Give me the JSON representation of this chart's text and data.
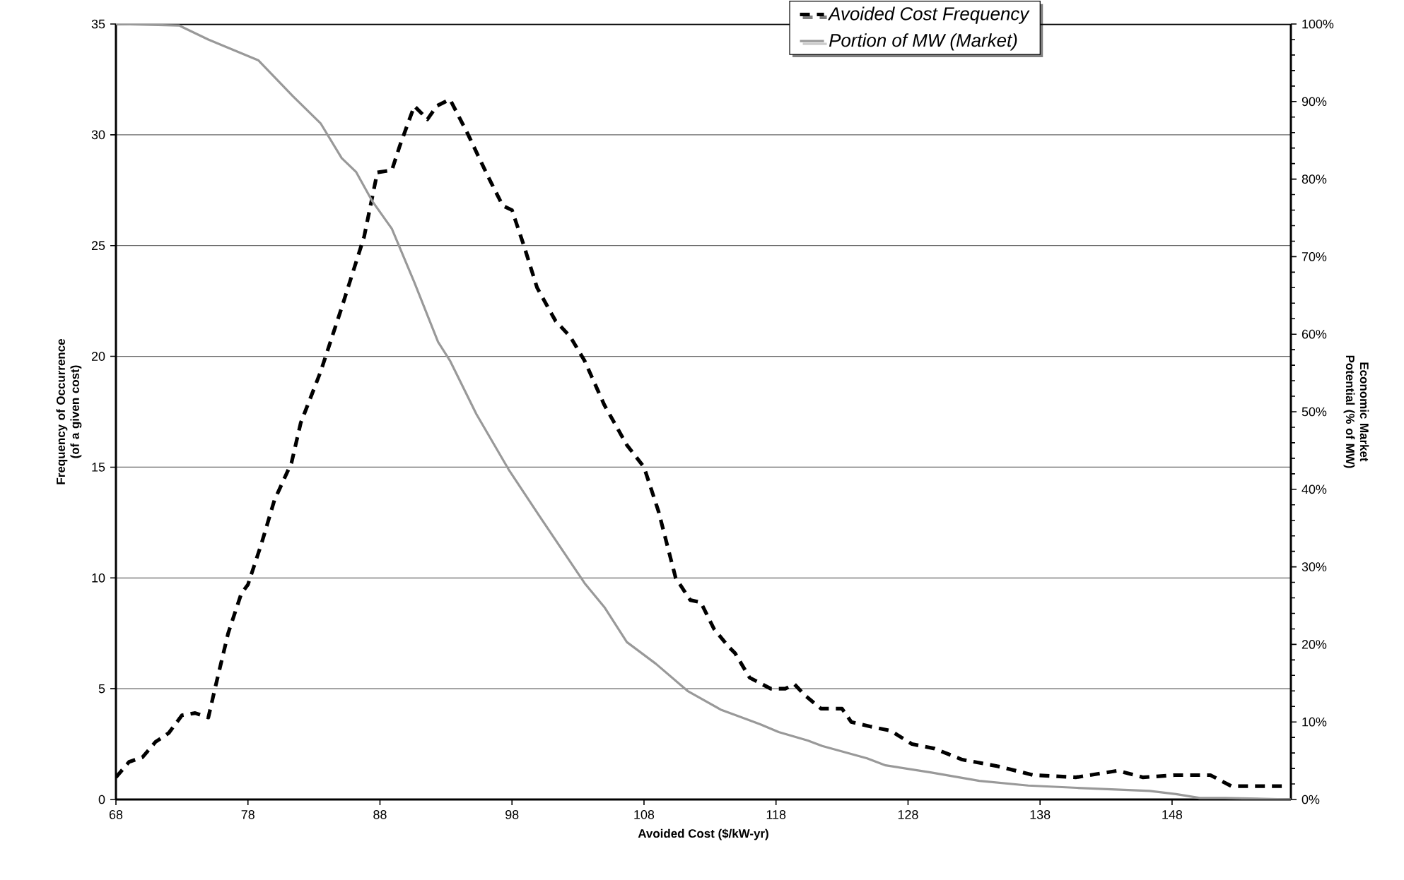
{
  "chart_data": {
    "type": "line",
    "xlabel": "Avoided Cost ($/kW-yr)",
    "ylabel": "Frequency of Occurrence (of a given cost)",
    "y2label": "Economic Market Potential (% of MW)",
    "xlim": [
      68,
      157
    ],
    "xticks": [
      68,
      78,
      88,
      98,
      108,
      118,
      128,
      138,
      148
    ],
    "ylim": [
      0,
      35
    ],
    "yticks": [
      0,
      5,
      10,
      15,
      20,
      25,
      30,
      35
    ],
    "y2lim": [
      0,
      100
    ],
    "y2ticks": [
      {
        "value": 0,
        "label": "0%"
      },
      {
        "value": 10,
        "label": "10%"
      },
      {
        "value": 20,
        "label": "20%"
      },
      {
        "value": 30,
        "label": "30%"
      },
      {
        "value": 40,
        "label": "40%"
      },
      {
        "value": 50,
        "label": "50%"
      },
      {
        "value": 60,
        "label": "60%"
      },
      {
        "value": 70,
        "label": "70%"
      },
      {
        "value": 80,
        "label": "80%"
      },
      {
        "value": 90,
        "label": "90%"
      },
      {
        "value": 100,
        "label": "100%"
      }
    ],
    "grid": "y",
    "legend": "top",
    "marker": "none",
    "series": [
      {
        "name": "Avoided Cost Frequency",
        "color": "#000000",
        "line_style": "dashed",
        "x": [
          68,
          69,
          70,
          71,
          72,
          73,
          74,
          75,
          75.5,
          76.5,
          77.5,
          78,
          79,
          80,
          81.3,
          82,
          83.5,
          85.1,
          86.8,
          87.8,
          88.9,
          89.5,
          90.6,
          91.6,
          92.3,
          93.3,
          94.6,
          96.2,
          97.3,
          98,
          98.9,
          99.9,
          101.3,
          102.4,
          103.5,
          105,
          106.7,
          108,
          109.1,
          110.4,
          111.5,
          112.3,
          113.3,
          114.4,
          114.9,
          116,
          117.6,
          118.7,
          119.4,
          120.2,
          121.4,
          123,
          123.7,
          125.1,
          126.7,
          128.3,
          130,
          132.1,
          134.8,
          137.5,
          140.7,
          143.9,
          145.8,
          148.2,
          150.9,
          152.5,
          156.5
        ],
        "values": [
          1.0,
          1.7,
          1.9,
          2.6,
          3.0,
          3.8,
          3.9,
          3.7,
          5.0,
          7.5,
          9.3,
          9.7,
          11.5,
          13.5,
          15.2,
          17,
          19.3,
          22.2,
          25.4,
          28.3,
          28.4,
          29.5,
          31.3,
          30.7,
          31.3,
          31.6,
          30.1,
          28.1,
          26.8,
          26.6,
          25,
          23.1,
          21.6,
          20.9,
          19.8,
          17.8,
          16,
          15.0,
          13,
          10,
          9.0,
          8.9,
          7.7,
          6.9,
          6.6,
          5.5,
          5.0,
          5.0,
          5.2,
          4.7,
          4.1,
          4.1,
          3.5,
          3.3,
          3.1,
          2.5,
          2.3,
          1.8,
          1.5,
          1.1,
          1.0,
          1.3,
          1.0,
          1.1,
          1.1,
          0.6,
          0.6
        ]
      },
      {
        "name": "Portion of MW (Market)",
        "color": "#999999",
        "line_style": "solid",
        "axis": "y2",
        "x": [
          68,
          72.8,
          75,
          78.8,
          81.4,
          83.5,
          85.1,
          86.2,
          87.4,
          88.9,
          90.6,
          92.4,
          93.3,
          95.3,
          97.8,
          99.9,
          103.5,
          105,
          106.7,
          108.9,
          111.3,
          113.8,
          116.8,
          118.2,
          120.4,
          121.5,
          124.9,
          126.3,
          129.7,
          133.4,
          137.1,
          140.8,
          146.3,
          148.3,
          150.1,
          152,
          157
        ],
        "values": [
          100,
          99.8,
          98,
          95.3,
          90.7,
          87.2,
          82.7,
          80.9,
          77.2,
          73.6,
          66.7,
          59,
          56.6,
          49.7,
          42.4,
          37,
          27.9,
          24.8,
          20.3,
          17.5,
          14,
          11.6,
          9.7,
          8.7,
          7.6,
          6.9,
          5.3,
          4.4,
          3.5,
          2.4,
          1.8,
          1.5,
          1.1,
          0.7,
          0.2,
          0.2,
          0
        ]
      }
    ]
  }
}
